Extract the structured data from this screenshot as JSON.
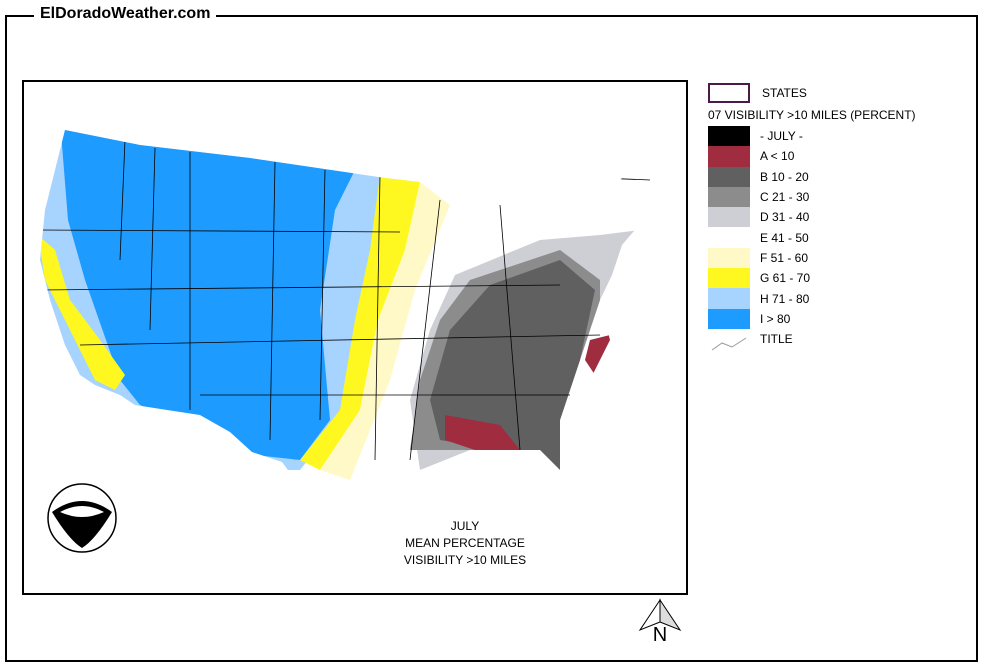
{
  "site_title": "ElDoradoWeather.com",
  "legend": {
    "states_label": "STATES",
    "heading": "07 VISIBILITY >10 MILES (PERCENT)",
    "items": [
      {
        "label": "- JULY -",
        "color": "#000000"
      },
      {
        "label": "A < 10",
        "color": "#a02c40"
      },
      {
        "label": "B 10 - 20",
        "color": "#606060"
      },
      {
        "label": "C 21 - 30",
        "color": "#8c8c8c"
      },
      {
        "label": "D 31 - 40",
        "color": "#cdcfd5"
      },
      {
        "label": "E 41 - 50",
        "color": "#ffffff"
      },
      {
        "label": "F 51 - 60",
        "color": "#fff9c8"
      },
      {
        "label": "G 61 - 70",
        "color": "#fff820"
      },
      {
        "label": "H 71 - 80",
        "color": "#a6d4ff"
      },
      {
        "label": "I > 80",
        "color": "#1e9bff"
      }
    ],
    "title_label": "TITLE"
  },
  "map_title": {
    "line1": "JULY",
    "line2": "MEAN PERCENTAGE",
    "line3": "VISIBILITY >10 MILES"
  },
  "north_label": "N"
}
